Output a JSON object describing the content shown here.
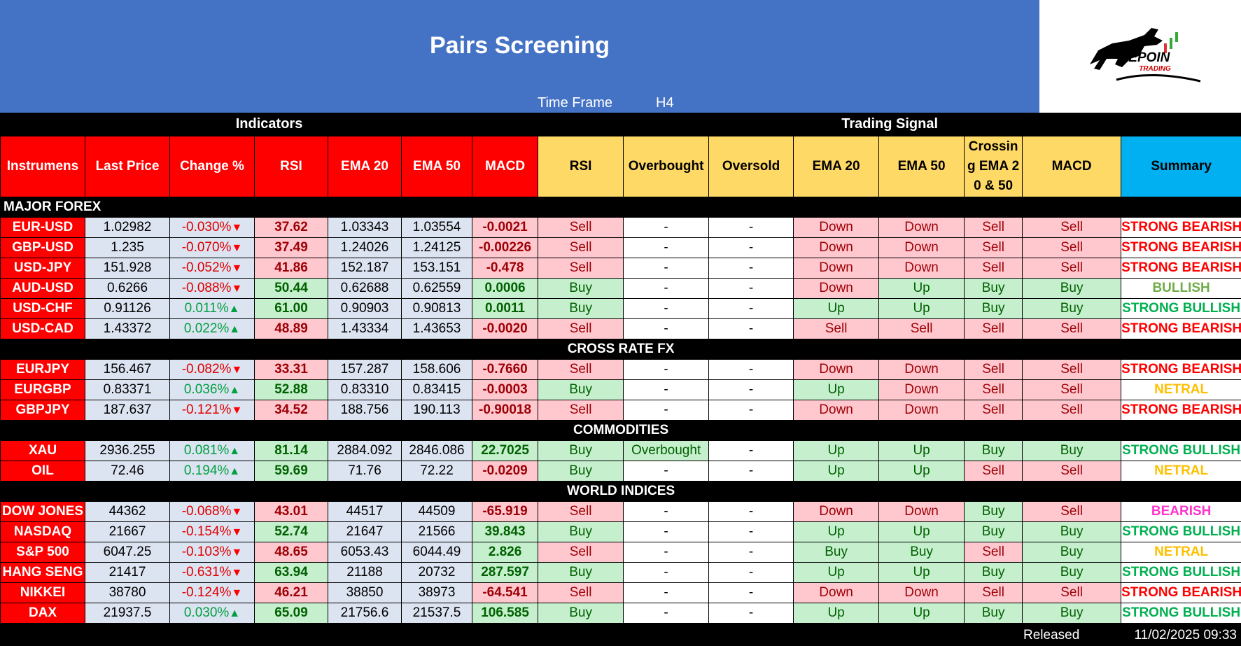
{
  "header": {
    "title": "Pairs Screening",
    "time_frame_label": "Time Frame",
    "time_frame": "H4",
    "logo": {
      "name": "KEPOIN",
      "tagline": "TRADING"
    }
  },
  "groups": [
    "Indicators",
    "Trading Signal"
  ],
  "columns": [
    "Instrumens",
    "Last Price",
    "Change %",
    "RSI",
    "EMA 20",
    "EMA 50",
    "MACD",
    "RSI",
    "Overbought",
    "Oversold",
    "EMA 20",
    "EMA 50",
    "Crossing EMA 20 & 50",
    "MACD",
    "Summary"
  ],
  "sections": [
    {
      "title": "MAJOR FOREX",
      "rows": [
        {
          "name": "EUR-USD",
          "cells": [
            "1.02982",
            "-0.030%",
            "37.62",
            "1.03343",
            "1.03554",
            "-0.0021",
            "Sell",
            "-",
            "-",
            "Down",
            "Down",
            "Sell",
            "Sell",
            "STRONG BEARISH"
          ],
          "fills": [
            "#dce3f1",
            "#dce3f1",
            "#ffc7ce",
            "#dce3f1",
            "#dce3f1",
            "#ffc7ce",
            "#ffc7ce",
            "#ffffff",
            "#ffffff",
            "#ffc7ce",
            "#ffc7ce",
            "#ffc7ce",
            "#ffc7ce",
            "#ffffff"
          ],
          "summary_color": "#ff0000"
        },
        {
          "name": "GBP-USD",
          "cells": [
            "1.235",
            "-0.070%",
            "37.49",
            "1.24026",
            "1.24125",
            "-0.00226",
            "Sell",
            "-",
            "-",
            "Down",
            "Down",
            "Sell",
            "Sell",
            "STRONG BEARISH"
          ],
          "fills": [
            "#dce3f1",
            "#dce3f1",
            "#ffc7ce",
            "#dce3f1",
            "#dce3f1",
            "#ffc7ce",
            "#ffc7ce",
            "#ffffff",
            "#ffffff",
            "#ffc7ce",
            "#ffc7ce",
            "#ffc7ce",
            "#ffc7ce",
            "#ffffff"
          ],
          "summary_color": "#ff0000"
        },
        {
          "name": "USD-JPY",
          "cells": [
            "151.928",
            "-0.052%",
            "41.86",
            "152.187",
            "153.151",
            "-0.478",
            "Sell",
            "-",
            "-",
            "Down",
            "Down",
            "Sell",
            "Sell",
            "STRONG BEARISH"
          ],
          "fills": [
            "#dce3f1",
            "#dce3f1",
            "#ffc7ce",
            "#dce3f1",
            "#dce3f1",
            "#ffc7ce",
            "#ffc7ce",
            "#ffffff",
            "#ffffff",
            "#ffc7ce",
            "#ffc7ce",
            "#ffc7ce",
            "#ffc7ce",
            "#ffffff"
          ],
          "summary_color": "#ff0000"
        },
        {
          "name": "AUD-USD",
          "cells": [
            "0.6266",
            "-0.088%",
            "50.44",
            "0.62688",
            "0.62559",
            "0.0006",
            "Buy",
            "-",
            "-",
            "Down",
            "Up",
            "Buy",
            "Buy",
            "BULLISH"
          ],
          "fills": [
            "#dce3f1",
            "#dce3f1",
            "#c6efce",
            "#dce3f1",
            "#dce3f1",
            "#c6efce",
            "#c6efce",
            "#ffffff",
            "#ffffff",
            "#ffc7ce",
            "#c6efce",
            "#c6efce",
            "#c6efce",
            "#ffffff"
          ],
          "summary_color": "#70ad47"
        },
        {
          "name": "USD-CHF",
          "cells": [
            "0.91126",
            "0.011%",
            "61.00",
            "0.90903",
            "0.90813",
            "0.0011",
            "Buy",
            "-",
            "-",
            "Up",
            "Up",
            "Buy",
            "Buy",
            "STRONG BULLISH"
          ],
          "fills": [
            "#dce3f1",
            "#dce3f1",
            "#c6efce",
            "#dce3f1",
            "#dce3f1",
            "#c6efce",
            "#c6efce",
            "#ffffff",
            "#ffffff",
            "#c6efce",
            "#c6efce",
            "#c6efce",
            "#c6efce",
            "#ffffff"
          ],
          "summary_color": "#00b050"
        },
        {
          "name": "USD-CAD",
          "cells": [
            "1.43372",
            "0.022%",
            "48.89",
            "1.43334",
            "1.43653",
            "-0.0020",
            "Sell",
            "-",
            "-",
            "Sell",
            "Sell",
            "Sell",
            "Sell",
            "STRONG BEARISH"
          ],
          "fills": [
            "#dce3f1",
            "#dce3f1",
            "#ffc7ce",
            "#dce3f1",
            "#dce3f1",
            "#ffc7ce",
            "#ffc7ce",
            "#ffffff",
            "#ffffff",
            "#ffc7ce",
            "#ffc7ce",
            "#ffc7ce",
            "#ffc7ce",
            "#ffffff"
          ],
          "summary_color": "#ff0000"
        }
      ]
    },
    {
      "title": "CROSS RATE FX",
      "rows": [
        {
          "name": "EURJPY",
          "cells": [
            "156.467",
            "-0.082%",
            "33.31",
            "157.287",
            "158.606",
            "-0.7660",
            "Sell",
            "-",
            "-",
            "Down",
            "Down",
            "Sell",
            "Sell",
            "STRONG BEARISH"
          ],
          "fills": [
            "#dce3f1",
            "#dce3f1",
            "#ffc7ce",
            "#dce3f1",
            "#dce3f1",
            "#ffc7ce",
            "#ffc7ce",
            "#ffffff",
            "#ffffff",
            "#ffc7ce",
            "#ffc7ce",
            "#ffc7ce",
            "#ffc7ce",
            "#ffffff"
          ],
          "summary_color": "#ff0000"
        },
        {
          "name": "EURGBP",
          "cells": [
            "0.83371",
            "0.036%",
            "52.88",
            "0.83310",
            "0.83415",
            "-0.0003",
            "Buy",
            "-",
            "-",
            "Up",
            "Down",
            "Sell",
            "Sell",
            "NETRAL"
          ],
          "fills": [
            "#dce3f1",
            "#dce3f1",
            "#c6efce",
            "#dce3f1",
            "#dce3f1",
            "#ffc7ce",
            "#c6efce",
            "#ffffff",
            "#ffffff",
            "#c6efce",
            "#ffc7ce",
            "#ffc7ce",
            "#ffc7ce",
            "#ffffff"
          ],
          "summary_color": "#ffc000"
        },
        {
          "name": "GBPJPY",
          "cells": [
            "187.637",
            "-0.121%",
            "34.52",
            "188.756",
            "190.113",
            "-0.90018",
            "Sell",
            "-",
            "-",
            "Down",
            "Down",
            "Sell",
            "Sell",
            "STRONG BEARISH"
          ],
          "fills": [
            "#dce3f1",
            "#dce3f1",
            "#ffc7ce",
            "#dce3f1",
            "#dce3f1",
            "#ffc7ce",
            "#ffc7ce",
            "#ffffff",
            "#ffffff",
            "#ffc7ce",
            "#ffc7ce",
            "#ffc7ce",
            "#ffc7ce",
            "#ffffff"
          ],
          "summary_color": "#ff0000"
        }
      ]
    },
    {
      "title": "COMMODITIES",
      "rows": [
        {
          "name": "XAU",
          "cells": [
            "2936.255",
            "0.081%",
            "81.14",
            "2884.092",
            "2846.086",
            "22.7025",
            "Buy",
            "Overbought",
            "-",
            "Up",
            "Up",
            "Buy",
            "Buy",
            "STRONG BULLISH"
          ],
          "fills": [
            "#dce3f1",
            "#dce3f1",
            "#c6efce",
            "#dce3f1",
            "#dce3f1",
            "#c6efce",
            "#c6efce",
            "#c6efce",
            "#ffffff",
            "#c6efce",
            "#c6efce",
            "#c6efce",
            "#c6efce",
            "#ffffff"
          ],
          "summary_color": "#00b050"
        },
        {
          "name": "OIL",
          "cells": [
            "72.46",
            "0.194%",
            "59.69",
            "71.76",
            "72.22",
            "-0.0209",
            "Buy",
            "-",
            "-",
            "Up",
            "Up",
            "Sell",
            "Sell",
            "NETRAL"
          ],
          "fills": [
            "#dce3f1",
            "#dce3f1",
            "#c6efce",
            "#dce3f1",
            "#dce3f1",
            "#ffc7ce",
            "#c6efce",
            "#ffffff",
            "#ffffff",
            "#c6efce",
            "#c6efce",
            "#ffc7ce",
            "#ffc7ce",
            "#ffffff"
          ],
          "summary_color": "#ffc000"
        }
      ]
    },
    {
      "title": "WORLD INDICES",
      "rows": [
        {
          "name": "DOW JONES",
          "cells": [
            "44362",
            "-0.068%",
            "43.01",
            "44517",
            "44509",
            "-65.919",
            "Sell",
            "-",
            "-",
            "Down",
            "Down",
            "Buy",
            "Sell",
            "BEARISH"
          ],
          "fills": [
            "#dce3f1",
            "#dce3f1",
            "#ffc7ce",
            "#dce3f1",
            "#dce3f1",
            "#ffc7ce",
            "#ffc7ce",
            "#ffffff",
            "#ffffff",
            "#ffc7ce",
            "#ffc7ce",
            "#c6efce",
            "#ffc7ce",
            "#ffffff"
          ],
          "summary_color": "#ff33cc"
        },
        {
          "name": "NASDAQ",
          "cells": [
            "21667",
            "-0.154%",
            "52.74",
            "21647",
            "21566",
            "39.843",
            "Buy",
            "-",
            "-",
            "Up",
            "Up",
            "Buy",
            "Buy",
            "STRONG BULLISH"
          ],
          "fills": [
            "#dce3f1",
            "#dce3f1",
            "#c6efce",
            "#dce3f1",
            "#dce3f1",
            "#c6efce",
            "#c6efce",
            "#ffffff",
            "#ffffff",
            "#c6efce",
            "#c6efce",
            "#c6efce",
            "#c6efce",
            "#ffffff"
          ],
          "summary_color": "#00b050"
        },
        {
          "name": "S&P 500",
          "cells": [
            "6047.25",
            "-0.103%",
            "48.65",
            "6053.43",
            "6044.49",
            "2.826",
            "Sell",
            "-",
            "-",
            "Buy",
            "Buy",
            "Sell",
            "Buy",
            "NETRAL"
          ],
          "fills": [
            "#dce3f1",
            "#dce3f1",
            "#ffc7ce",
            "#dce3f1",
            "#dce3f1",
            "#c6efce",
            "#ffc7ce",
            "#ffffff",
            "#ffffff",
            "#c6efce",
            "#c6efce",
            "#ffc7ce",
            "#c6efce",
            "#ffffff"
          ],
          "summary_color": "#ffc000"
        },
        {
          "name": "HANG SENG",
          "cells": [
            "21417",
            "-0.631%",
            "63.94",
            "21188",
            "20732",
            "287.597",
            "Buy",
            "-",
            "-",
            "Up",
            "Up",
            "Buy",
            "Buy",
            "STRONG BULLISH"
          ],
          "fills": [
            "#dce3f1",
            "#dce3f1",
            "#c6efce",
            "#dce3f1",
            "#dce3f1",
            "#c6efce",
            "#c6efce",
            "#ffffff",
            "#ffffff",
            "#c6efce",
            "#c6efce",
            "#c6efce",
            "#c6efce",
            "#ffffff"
          ],
          "summary_color": "#00b050"
        },
        {
          "name": "NIKKEI",
          "cells": [
            "38780",
            "-0.124%",
            "46.21",
            "38850",
            "38973",
            "-64.541",
            "Sell",
            "-",
            "-",
            "Down",
            "Down",
            "Sell",
            "Sell",
            "STRONG BEARISH"
          ],
          "fills": [
            "#dce3f1",
            "#dce3f1",
            "#ffc7ce",
            "#dce3f1",
            "#dce3f1",
            "#ffc7ce",
            "#ffc7ce",
            "#ffffff",
            "#ffffff",
            "#ffc7ce",
            "#ffc7ce",
            "#ffc7ce",
            "#ffc7ce",
            "#ffffff"
          ],
          "summary_color": "#ff0000"
        },
        {
          "name": "DAX",
          "cells": [
            "21937.5",
            "0.030%",
            "65.09",
            "21756.6",
            "21537.5",
            "106.585",
            "Buy",
            "-",
            "-",
            "Up",
            "Up",
            "Buy",
            "Buy",
            "STRONG BULLISH"
          ],
          "fills": [
            "#dce3f1",
            "#dce3f1",
            "#c6efce",
            "#dce3f1",
            "#dce3f1",
            "#c6efce",
            "#c6efce",
            "#ffffff",
            "#ffffff",
            "#c6efce",
            "#c6efce",
            "#c6efce",
            "#c6efce",
            "#ffffff"
          ],
          "summary_color": "#00b050"
        }
      ]
    }
  ],
  "footer": {
    "label": "Released",
    "timestamp": "11/02/2025 09:33"
  }
}
